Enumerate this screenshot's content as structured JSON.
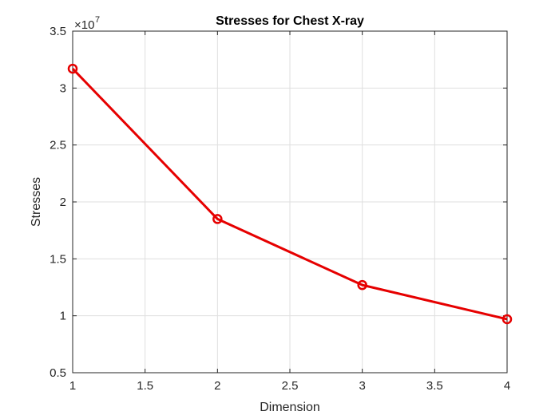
{
  "chart_data": {
    "type": "line",
    "title": "Stresses for Chest X-ray",
    "xlabel": "Dimension",
    "ylabel": "Stresses",
    "y_exponent_label": "×10",
    "y_exponent_power": "7",
    "xlim": [
      1,
      4
    ],
    "ylim": [
      0.5,
      3.5
    ],
    "xticks": [
      "1",
      "1.5",
      "2",
      "2.5",
      "3",
      "3.5",
      "4"
    ],
    "yticks": [
      "0.5",
      "1",
      "1.5",
      "2",
      "2.5",
      "3",
      "3.5"
    ],
    "grid": true,
    "series": [
      {
        "color": "#e60000",
        "marker": "circle",
        "x": [
          1,
          2,
          3,
          4
        ],
        "y": [
          3.17,
          1.85,
          1.27,
          0.97
        ]
      }
    ]
  }
}
